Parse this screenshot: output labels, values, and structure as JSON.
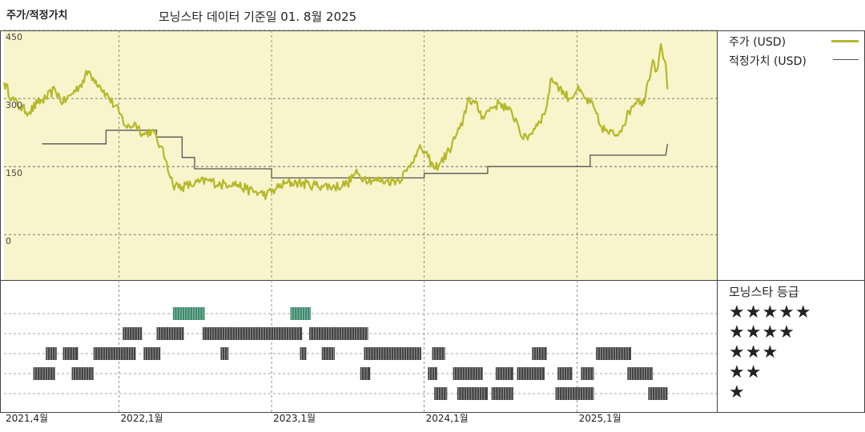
{
  "header": {
    "left_title": "주가/적정가치",
    "subtitle": "모닝스타 데이터 기준일 01. 8월 2025"
  },
  "legend": {
    "price": "주가 (USD)",
    "fair_value": "적정가치 (USD)"
  },
  "ratings": {
    "title": "모닝스타 등급",
    "levels": [
      "★★★★★",
      "★★★★",
      "★★★",
      "★★",
      "★"
    ]
  },
  "colors": {
    "price_line": "#b5b82a",
    "fair_value_line": "#555555",
    "plot_bg": "#f8f4cc",
    "rating_dark": "#444444",
    "rating_green": "#3c8a6e"
  },
  "chart_data": {
    "type": "line",
    "title": "",
    "ylim": [
      -100,
      450
    ],
    "yticks": [
      {
        "value": 450,
        "label": "450"
      },
      {
        "value": 300,
        "label": "300"
      },
      {
        "value": 150,
        "label": "150"
      },
      {
        "value": 0,
        "label": "0"
      }
    ],
    "xlim": [
      "2021-04-01",
      "2025-12-01"
    ],
    "xticks": [
      {
        "date": "2021-04-01",
        "label": "2021,4월"
      },
      {
        "date": "2022-01-01",
        "label": "2022,1월"
      },
      {
        "date": "2023-01-01",
        "label": "2023,1월"
      },
      {
        "date": "2024-01-01",
        "label": "2024,1월"
      },
      {
        "date": "2025-01-01",
        "label": "2025,1월"
      }
    ],
    "grid": true,
    "legend_position": "right",
    "series": [
      {
        "name": "주가 (USD)",
        "points": [
          [
            "2021-04-01",
            335
          ],
          [
            "2021-04-20",
            300
          ],
          [
            "2021-05-10",
            280
          ],
          [
            "2021-06-01",
            270
          ],
          [
            "2021-06-20",
            290
          ],
          [
            "2021-07-10",
            300
          ],
          [
            "2021-08-01",
            320
          ],
          [
            "2021-08-20",
            290
          ],
          [
            "2021-09-10",
            310
          ],
          [
            "2021-10-01",
            330
          ],
          [
            "2021-10-20",
            360
          ],
          [
            "2021-11-01",
            345
          ],
          [
            "2021-11-15",
            330
          ],
          [
            "2021-12-01",
            310
          ],
          [
            "2022-01-01",
            270
          ],
          [
            "2022-01-20",
            235
          ],
          [
            "2022-02-10",
            245
          ],
          [
            "2022-03-01",
            220
          ],
          [
            "2022-03-20",
            230
          ],
          [
            "2022-04-10",
            195
          ],
          [
            "2022-04-25",
            160
          ],
          [
            "2022-05-10",
            110
          ],
          [
            "2022-06-01",
            105
          ],
          [
            "2022-07-01",
            112
          ],
          [
            "2022-08-01",
            120
          ],
          [
            "2022-09-01",
            110
          ],
          [
            "2022-10-01",
            115
          ],
          [
            "2022-11-01",
            100
          ],
          [
            "2022-12-01",
            92
          ],
          [
            "2022-12-20",
            88
          ],
          [
            "2023-01-10",
            100
          ],
          [
            "2023-02-01",
            112
          ],
          [
            "2023-03-01",
            115
          ],
          [
            "2023-04-01",
            110
          ],
          [
            "2023-05-01",
            108
          ],
          [
            "2023-06-01",
            105
          ],
          [
            "2023-07-01",
            112
          ],
          [
            "2023-07-20",
            135
          ],
          [
            "2023-08-10",
            125
          ],
          [
            "2023-09-01",
            120
          ],
          [
            "2023-10-01",
            118
          ],
          [
            "2023-11-01",
            120
          ],
          [
            "2023-11-20",
            140
          ],
          [
            "2023-12-10",
            175
          ],
          [
            "2023-12-25",
            190
          ],
          [
            "2024-01-10",
            170
          ],
          [
            "2024-01-25",
            145
          ],
          [
            "2024-02-10",
            160
          ],
          [
            "2024-03-01",
            185
          ],
          [
            "2024-03-20",
            225
          ],
          [
            "2024-04-01",
            240
          ],
          [
            "2024-04-15",
            300
          ],
          [
            "2024-05-01",
            290
          ],
          [
            "2024-05-20",
            260
          ],
          [
            "2024-06-10",
            280
          ],
          [
            "2024-07-01",
            290
          ],
          [
            "2024-07-20",
            275
          ],
          [
            "2024-08-10",
            250
          ],
          [
            "2024-08-25",
            210
          ],
          [
            "2024-09-10",
            220
          ],
          [
            "2024-10-01",
            250
          ],
          [
            "2024-10-15",
            265
          ],
          [
            "2024-11-01",
            345
          ],
          [
            "2024-11-15",
            330
          ],
          [
            "2024-12-01",
            310
          ],
          [
            "2024-12-15",
            300
          ],
          [
            "2025-01-01",
            320
          ],
          [
            "2025-01-20",
            300
          ],
          [
            "2025-02-10",
            280
          ],
          [
            "2025-02-25",
            240
          ],
          [
            "2025-03-15",
            225
          ],
          [
            "2025-04-05",
            220
          ],
          [
            "2025-04-20",
            240
          ],
          [
            "2025-05-10",
            280
          ],
          [
            "2025-05-25",
            300
          ],
          [
            "2025-06-10",
            290
          ],
          [
            "2025-06-20",
            340
          ],
          [
            "2025-07-01",
            385
          ],
          [
            "2025-07-10",
            360
          ],
          [
            "2025-07-20",
            420
          ],
          [
            "2025-08-01",
            375
          ],
          [
            "2025-08-05",
            320
          ]
        ]
      },
      {
        "name": "적정가치 (USD)",
        "points": [
          [
            "2021-07-01",
            200
          ],
          [
            "2021-12-01",
            200
          ],
          [
            "2021-12-01",
            230
          ],
          [
            "2022-04-01",
            230
          ],
          [
            "2022-04-01",
            215
          ],
          [
            "2022-06-01",
            215
          ],
          [
            "2022-06-01",
            170
          ],
          [
            "2022-07-01",
            170
          ],
          [
            "2022-07-01",
            145
          ],
          [
            "2023-01-01",
            145
          ],
          [
            "2023-01-01",
            125
          ],
          [
            "2024-01-01",
            125
          ],
          [
            "2024-01-01",
            135
          ],
          [
            "2024-06-01",
            135
          ],
          [
            "2024-06-01",
            150
          ],
          [
            "2025-02-01",
            150
          ],
          [
            "2025-02-01",
            175
          ],
          [
            "2025-08-01",
            175
          ],
          [
            "2025-08-05",
            200
          ]
        ]
      }
    ],
    "rating_segments": [
      {
        "stars": 5,
        "start": "2022-05-10",
        "end": "2022-07-25"
      },
      {
        "stars": 5,
        "start": "2023-02-15",
        "end": "2023-04-05"
      },
      {
        "stars": 4,
        "start": "2022-01-10",
        "end": "2022-02-25"
      },
      {
        "stars": 4,
        "start": "2022-04-01",
        "end": "2022-06-05"
      },
      {
        "stars": 4,
        "start": "2022-07-20",
        "end": "2023-03-15"
      },
      {
        "stars": 4,
        "start": "2023-04-01",
        "end": "2023-08-20"
      },
      {
        "stars": 3,
        "start": "2021-07-10",
        "end": "2021-08-05"
      },
      {
        "stars": 3,
        "start": "2021-08-20",
        "end": "2021-09-25"
      },
      {
        "stars": 3,
        "start": "2021-11-01",
        "end": "2022-02-10"
      },
      {
        "stars": 3,
        "start": "2022-03-01",
        "end": "2022-04-10"
      },
      {
        "stars": 3,
        "start": "2022-09-01",
        "end": "2022-09-20"
      },
      {
        "stars": 3,
        "start": "2023-03-10",
        "end": "2023-03-25"
      },
      {
        "stars": 3,
        "start": "2023-05-01",
        "end": "2023-06-01"
      },
      {
        "stars": 3,
        "start": "2023-08-10",
        "end": "2023-12-25"
      },
      {
        "stars": 3,
        "start": "2024-01-20",
        "end": "2024-02-20"
      },
      {
        "stars": 3,
        "start": "2024-09-15",
        "end": "2024-10-20"
      },
      {
        "stars": 3,
        "start": "2025-02-15",
        "end": "2025-05-10"
      },
      {
        "stars": 2,
        "start": "2021-06-10",
        "end": "2021-08-01"
      },
      {
        "stars": 2,
        "start": "2021-09-10",
        "end": "2021-11-01"
      },
      {
        "stars": 2,
        "start": "2023-08-01",
        "end": "2023-08-25"
      },
      {
        "stars": 2,
        "start": "2024-01-10",
        "end": "2024-02-01"
      },
      {
        "stars": 2,
        "start": "2024-03-10",
        "end": "2024-05-20"
      },
      {
        "stars": 2,
        "start": "2024-06-20",
        "end": "2024-08-01"
      },
      {
        "stars": 2,
        "start": "2024-08-10",
        "end": "2024-10-15"
      },
      {
        "stars": 2,
        "start": "2024-11-15",
        "end": "2024-12-20"
      },
      {
        "stars": 2,
        "start": "2025-01-10",
        "end": "2025-02-10"
      },
      {
        "stars": 2,
        "start": "2025-05-01",
        "end": "2025-07-01"
      },
      {
        "stars": 1,
        "start": "2024-01-25",
        "end": "2024-02-25"
      },
      {
        "stars": 1,
        "start": "2024-03-20",
        "end": "2024-06-01"
      },
      {
        "stars": 1,
        "start": "2024-06-10",
        "end": "2024-08-01"
      },
      {
        "stars": 1,
        "start": "2024-11-10",
        "end": "2025-02-10"
      },
      {
        "stars": 1,
        "start": "2025-06-20",
        "end": "2025-08-05"
      }
    ]
  }
}
